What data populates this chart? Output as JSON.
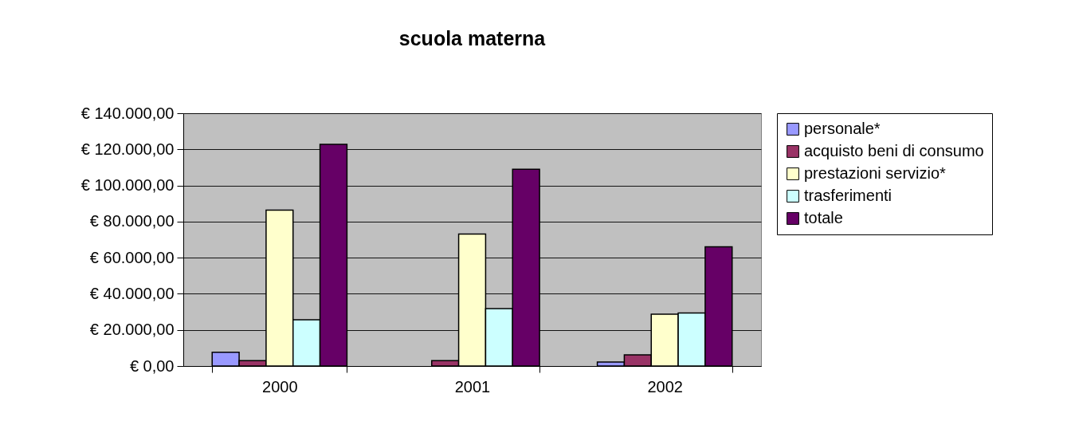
{
  "chart_data": {
    "type": "bar",
    "title": "scuola materna",
    "categories": [
      "2000",
      "2001",
      "2002"
    ],
    "series": [
      {
        "name": "personale*",
        "color": "#9999ff",
        "values": [
          7600,
          null,
          2200
        ]
      },
      {
        "name": "acquisto beni di consumo",
        "color": "#993366",
        "values": [
          3000,
          3000,
          6200
        ]
      },
      {
        "name": "prestazioni servizio*",
        "color": "#ffffcc",
        "values": [
          86300,
          73100,
          28700
        ]
      },
      {
        "name": "trasferimenti",
        "color": "#ccffff",
        "values": [
          25600,
          31800,
          29400
        ]
      },
      {
        "name": "totale",
        "color": "#660066",
        "values": [
          122800,
          109000,
          66000
        ]
      }
    ],
    "ylim": [
      0,
      140000
    ],
    "yticks": [
      {
        "value": 0,
        "label": "€ 0,00"
      },
      {
        "value": 20000,
        "label": "€ 20.000,00"
      },
      {
        "value": 40000,
        "label": "€ 40.000,00"
      },
      {
        "value": 60000,
        "label": "€ 60.000,00"
      },
      {
        "value": 80000,
        "label": "€ 80.000,00"
      },
      {
        "value": 100000,
        "label": "€ 100.000,00"
      },
      {
        "value": 120000,
        "label": "€ 120.000,00"
      },
      {
        "value": 140000,
        "label": "€ 140.000,00"
      }
    ],
    "grid": "y",
    "legend": "right"
  }
}
